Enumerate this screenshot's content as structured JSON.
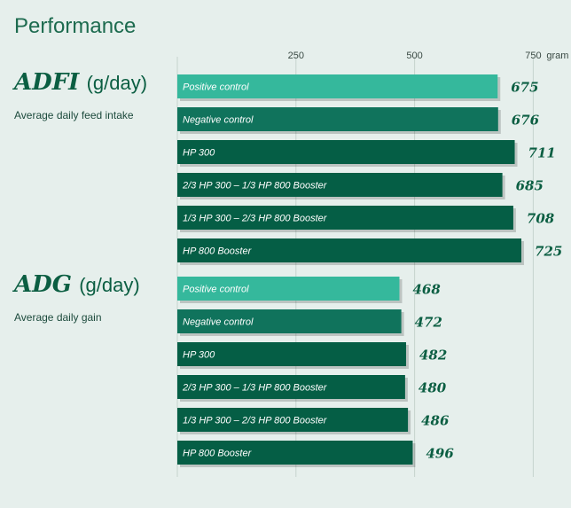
{
  "title": "Performance",
  "axis": {
    "ticks": [
      250,
      500,
      750
    ],
    "unit": "gram"
  },
  "colors": {
    "background": "#e6efec",
    "positive_control": "#35b89c",
    "negative_control": "#10735c",
    "treatment": "#055e45",
    "text": "#0b5e42",
    "gridline": "#c6d3ce"
  },
  "sections": [
    {
      "abbr": "ADFI",
      "unit": "(g/day)",
      "subtitle": "Average daily feed intake"
    },
    {
      "abbr": "ADG",
      "unit": "(g/day)",
      "subtitle": "Average daily gain"
    }
  ],
  "chart_data": [
    {
      "type": "bar",
      "orientation": "horizontal",
      "title": "ADFI (g/day)",
      "subtitle": "Average daily feed intake",
      "categories": [
        "Positive control",
        "Negative control",
        "HP 300",
        "2/3 HP 300 – 1/3 HP 800 Booster",
        "1/3 HP 300 – 2/3 HP 800 Booster",
        "HP 800 Booster"
      ],
      "values": [
        675,
        676,
        711,
        685,
        708,
        725
      ],
      "xlim": [
        0,
        800
      ],
      "ticks": [
        250,
        500,
        750
      ],
      "unit": "gram",
      "grid": true
    },
    {
      "type": "bar",
      "orientation": "horizontal",
      "title": "ADG (g/day)",
      "subtitle": "Average daily gain",
      "categories": [
        "Positive control",
        "Negative control",
        "HP 300",
        "2/3 HP 300 – 1/3 HP 800 Booster",
        "1/3 HP 300 – 2/3 HP 800 Booster",
        "HP 800 Booster"
      ],
      "values": [
        468,
        472,
        482,
        480,
        486,
        496
      ],
      "xlim": [
        0,
        800
      ],
      "ticks": [
        250,
        500,
        750
      ],
      "unit": "gram",
      "grid": true
    }
  ]
}
